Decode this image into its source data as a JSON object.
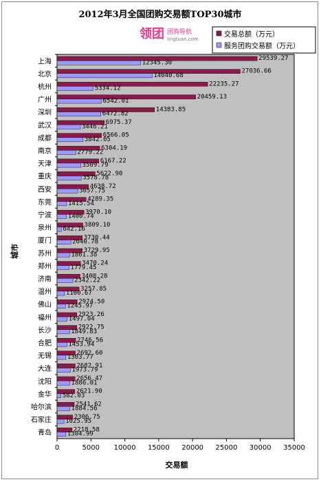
{
  "logo": {
    "mark": "领团",
    "name": "团购导航",
    "url": "lingtuan.com"
  },
  "chart_data": {
    "type": "bar",
    "orientation": "horizontal",
    "title": "2012年3月全国团购交易额TOP30城市",
    "xlabel": "交易额",
    "ylabel": "城市",
    "xlim": [
      0,
      35000
    ],
    "xticks": [
      0,
      5000,
      10000,
      15000,
      20000,
      25000,
      30000,
      35000
    ],
    "grid": false,
    "plot_background": "#c0c0c0",
    "legend_position": "top-right",
    "categories": [
      "上海",
      "北京",
      "杭州",
      "广州",
      "深圳",
      "武汉",
      "成都",
      "南京",
      "天津",
      "重庆",
      "西安",
      "东莞",
      "宁波",
      "泉州",
      "厦门",
      "苏州",
      "郑州",
      "济南",
      "温州",
      "佛山",
      "福州",
      "长沙",
      "合肥",
      "无锡",
      "大连",
      "沈阳",
      "金华",
      "哈尔滨",
      "石家庄",
      "青岛"
    ],
    "series": [
      {
        "name": "交易总额（万元）",
        "color": "#8b1a4a",
        "values": [
          29539.27,
          27036.66,
          22235.27,
          20459.13,
          14383.85,
          6975.37,
          6566.05,
          6304.19,
          6167.22,
          5622.9,
          4638.72,
          4289.35,
          3970.1,
          3809.1,
          3730.44,
          3729.95,
          3470.24,
          3400.28,
          3257.85,
          2974.5,
          2923.26,
          2922.75,
          2746.56,
          2692.6,
          2682.91,
          2656.47,
          2621.9,
          2541.62,
          2306.75,
          2218.58
        ]
      },
      {
        "name": "服务团购交易额（万元）",
        "color": "#9999ff",
        "values": [
          12345.3,
          14040.68,
          5334.12,
          6542.01,
          6472.82,
          3446.21,
          3842.05,
          2779.22,
          3509.79,
          3578.78,
          3057.75,
          1415.54,
          1400.74,
          642.16,
          2040.78,
          1861.38,
          1779.45,
          2342.22,
          1100.67,
          1245.97,
          1497.04,
          1849.83,
          1453.94,
          1303.77,
          1973.79,
          1886.01,
          582.03,
          1884.56,
          1025.95,
          1304.99
        ]
      }
    ]
  }
}
